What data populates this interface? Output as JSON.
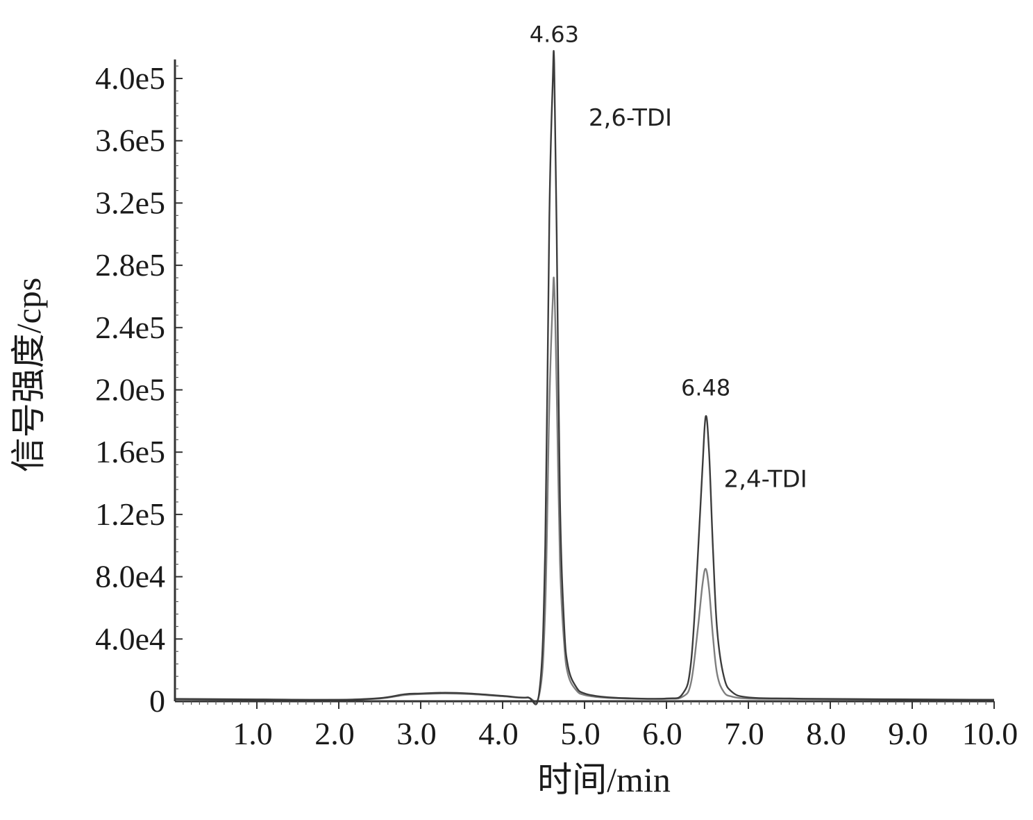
{
  "chart_data": {
    "type": "line",
    "title": "",
    "xlabel": "时间/min",
    "ylabel": "信号强度/cps",
    "xlim": [
      0,
      10.0
    ],
    "ylim": [
      0,
      410000
    ],
    "x_ticks": [
      1.0,
      2.0,
      3.0,
      4.0,
      5.0,
      6.0,
      7.0,
      8.0,
      9.0,
      10.0
    ],
    "x_tick_labels": [
      "1.0",
      "2.0",
      "3.0",
      "4.0",
      "5.0",
      "6.0",
      "7.0",
      "8.0",
      "9.0",
      "10.0"
    ],
    "y_ticks": [
      0,
      40000,
      80000,
      120000,
      160000,
      200000,
      240000,
      280000,
      320000,
      360000,
      400000
    ],
    "y_tick_labels": [
      "0",
      "4.0e4",
      "8.0e4",
      "1.2e5",
      "1.6e5",
      "2.0e5",
      "2.4e5",
      "2.8e5",
      "3.2e5",
      "3.6e5",
      "4.0e5"
    ],
    "grid": false,
    "series": [
      {
        "color": "#3c3c3c",
        "x": [
          0.0,
          1.0,
          2.0,
          2.5,
          2.8,
          3.0,
          3.3,
          3.6,
          4.0,
          4.3,
          4.45,
          4.52,
          4.57,
          4.61,
          4.63,
          4.66,
          4.7,
          4.75,
          4.8,
          4.9,
          5.0,
          5.2,
          5.5,
          6.0,
          6.2,
          6.3,
          6.38,
          6.44,
          6.48,
          6.52,
          6.57,
          6.62,
          6.7,
          6.8,
          7.0,
          7.5,
          8.0,
          9.0,
          10.0
        ],
        "values": [
          1500,
          1200,
          1000,
          2000,
          4500,
          5000,
          5500,
          5000,
          3500,
          2500,
          7000,
          100000,
          310000,
          395000,
          410000,
          300000,
          130000,
          50000,
          22000,
          9000,
          5000,
          3000,
          2000,
          1800,
          5000,
          25000,
          90000,
          150000,
          183000,
          160000,
          95000,
          45000,
          16000,
          6000,
          2500,
          1800,
          1500,
          1200,
          1000
        ]
      },
      {
        "color": "#7e7e7e",
        "x": [
          0.0,
          1.0,
          2.0,
          2.5,
          2.8,
          3.0,
          3.3,
          3.6,
          4.0,
          4.3,
          4.45,
          4.52,
          4.57,
          4.61,
          4.63,
          4.66,
          4.7,
          4.75,
          4.8,
          4.9,
          5.0,
          5.2,
          5.5,
          6.0,
          6.2,
          6.3,
          6.38,
          6.44,
          6.48,
          6.52,
          6.57,
          6.62,
          6.7,
          6.8,
          7.0,
          7.5,
          8.0,
          9.0,
          10.0
        ],
        "values": [
          1400,
          1100,
          900,
          1800,
          4000,
          4600,
          5000,
          4600,
          3200,
          2300,
          5000,
          60000,
          190000,
          255000,
          268000,
          200000,
          90000,
          38000,
          17000,
          7000,
          4000,
          2500,
          1800,
          1600,
          3000,
          12000,
          45000,
          75000,
          85000,
          72000,
          40000,
          17000,
          6000,
          3000,
          1800,
          1500,
          1300,
          1100,
          900
        ]
      }
    ],
    "annotations": [
      {
        "text": "4.63",
        "x": 4.63,
        "y": 410000
      },
      {
        "text": "2,6-TDI",
        "x": 5.05,
        "y": 375000
      },
      {
        "text": "6.48",
        "x": 6.48,
        "y": 183000
      },
      {
        "text": "2,4-TDI",
        "x": 6.7,
        "y": 143000
      }
    ]
  }
}
